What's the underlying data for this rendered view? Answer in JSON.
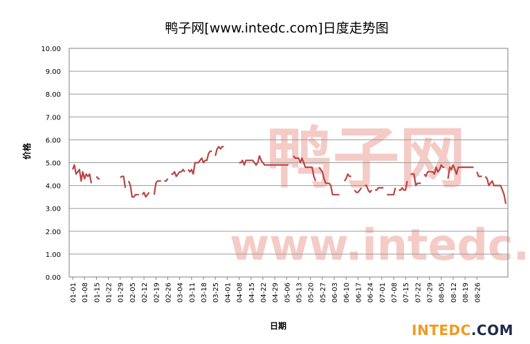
{
  "chart_data": {
    "type": "line",
    "title": "鸭子网[www.intedc.com]日度走势图",
    "xlabel": "日期",
    "ylabel": "价格",
    "ylim": [
      0,
      10
    ],
    "yticks": [
      "0.00",
      "1.00",
      "2.00",
      "3.00",
      "4.00",
      "5.00",
      "6.00",
      "7.00",
      "8.00",
      "9.00",
      "10.00"
    ],
    "xticks": [
      "01-01",
      "01-08",
      "01-15",
      "01-22",
      "01-29",
      "02-05",
      "02-12",
      "02-19",
      "02-26",
      "03-04",
      "03-11",
      "03-18",
      "03-25",
      "04-01",
      "04-08",
      "04-15",
      "04-22",
      "04-29",
      "05-06",
      "05-13",
      "05-20",
      "05-27",
      "06-03",
      "06-10",
      "06-17",
      "06-24",
      "07-01",
      "07-08",
      "07-15",
      "07-22",
      "07-29",
      "08-05",
      "08-12",
      "08-19",
      "08-26"
    ],
    "grid": true,
    "legend": "none",
    "series": [
      {
        "color": "#b94545",
        "segments": [
          [
            [
              0,
              4.7
            ],
            [
              1,
              4.9
            ],
            [
              2,
              4.5
            ],
            [
              3,
              4.6
            ],
            [
              4,
              4.7
            ],
            [
              5,
              4.2
            ],
            [
              6,
              4.6
            ],
            [
              7,
              4.3
            ],
            [
              8,
              4.5
            ],
            [
              9,
              4.4
            ],
            [
              10,
              4.5
            ],
            [
              11,
              4.1
            ]
          ],
          [
            [
              14,
              4.4
            ],
            [
              15,
              4.3
            ],
            [
              16,
              4.3
            ]
          ],
          [
            [
              28,
              4.35
            ],
            [
              29,
              4.4
            ],
            [
              30,
              4.4
            ],
            [
              31,
              3.9
            ]
          ],
          [
            [
              33,
              4.2
            ],
            [
              34,
              4.0
            ],
            [
              35,
              3.5
            ],
            [
              36,
              3.5
            ],
            [
              37,
              3.6
            ],
            [
              38,
              3.6
            ],
            [
              39,
              3.6
            ]
          ],
          [
            [
              41,
              3.6
            ],
            [
              42,
              3.7
            ],
            [
              43,
              3.5
            ],
            [
              44,
              3.6
            ],
            [
              45,
              3.7
            ]
          ],
          [
            [
              48,
              3.6
            ],
            [
              49,
              4.1
            ],
            [
              50,
              4.2
            ],
            [
              51,
              4.2
            ],
            [
              52,
              4.2
            ]
          ],
          [
            [
              54,
              4.2
            ],
            [
              55,
              4.2
            ],
            [
              56,
              4.3
            ]
          ],
          [
            [
              58,
              4.5
            ],
            [
              59,
              4.5
            ],
            [
              60,
              4.6
            ],
            [
              61,
              4.4
            ],
            [
              62,
              4.5
            ],
            [
              63,
              4.6
            ],
            [
              64,
              4.6
            ],
            [
              65,
              4.7
            ],
            [
              66,
              4.6
            ]
          ],
          [
            [
              68,
              4.7
            ],
            [
              69,
              4.6
            ],
            [
              70,
              4.7
            ],
            [
              71,
              4.5
            ],
            [
              72,
              5.0
            ],
            [
              73,
              5.0
            ],
            [
              74,
              5.0
            ],
            [
              75,
              5.1
            ],
            [
              76,
              5.2
            ],
            [
              77,
              5.0
            ],
            [
              78,
              5.1
            ],
            [
              79,
              5.1
            ],
            [
              80,
              5.4
            ],
            [
              81,
              5.5
            ],
            [
              82,
              5.5
            ]
          ],
          [
            [
              84,
              5.3
            ],
            [
              85,
              5.6
            ],
            [
              86,
              5.7
            ],
            [
              87,
              5.6
            ],
            [
              88,
              5.7
            ],
            [
              89,
              5.7
            ]
          ],
          [
            [
              98,
              5.0
            ],
            [
              99,
              5.0
            ],
            [
              100,
              5.1
            ],
            [
              101,
              4.9
            ],
            [
              102,
              5.1
            ],
            [
              103,
              5.1
            ],
            [
              104,
              5.1
            ],
            [
              105,
              5.1
            ],
            [
              106,
              5.1
            ],
            [
              107,
              5.0
            ],
            [
              108,
              4.9
            ],
            [
              109,
              5.0
            ],
            [
              110,
              5.3
            ],
            [
              111,
              5.1
            ],
            [
              112,
              5.0
            ],
            [
              113,
              4.9
            ],
            [
              114,
              4.9
            ],
            [
              115,
              4.9
            ],
            [
              116,
              4.9
            ],
            [
              117,
              4.9
            ],
            [
              118,
              4.9
            ],
            [
              119,
              4.9
            ],
            [
              120,
              4.9
            ],
            [
              121,
              4.9
            ],
            [
              122,
              4.9
            ],
            [
              123,
              4.9
            ],
            [
              124,
              4.9
            ],
            [
              125,
              4.9
            ],
            [
              126,
              4.9
            ],
            [
              127,
              4.9
            ]
          ],
          [
            [
              130,
              5.3
            ],
            [
              131,
              5.2
            ],
            [
              132,
              5.2
            ],
            [
              133,
              5.2
            ],
            [
              134,
              5.0
            ],
            [
              135,
              5.2
            ],
            [
              136,
              5.0
            ],
            [
              137,
              4.8
            ],
            [
              138,
              4.8
            ],
            [
              139,
              4.8
            ],
            [
              140,
              4.8
            ],
            [
              141,
              4.8
            ],
            [
              142,
              4.4
            ],
            [
              143,
              4.2
            ]
          ],
          [
            [
              145,
              4.8
            ],
            [
              146,
              4.7
            ],
            [
              147,
              4.6
            ],
            [
              148,
              4.3
            ],
            [
              149,
              4.1
            ],
            [
              150,
              4.1
            ],
            [
              151,
              4.1
            ],
            [
              152,
              4.0
            ],
            [
              153,
              3.6
            ],
            [
              154,
              3.6
            ],
            [
              155,
              3.6
            ],
            [
              156,
              3.6
            ],
            [
              157,
              3.6
            ]
          ],
          [
            [
              160,
              4.2
            ],
            [
              161,
              4.3
            ],
            [
              162,
              4.5
            ],
            [
              163,
              4.4
            ],
            [
              164,
              4.4
            ]
          ],
          [
            [
              166,
              3.8
            ],
            [
              167,
              3.7
            ],
            [
              168,
              3.7
            ],
            [
              169,
              3.8
            ],
            [
              170,
              3.9
            ]
          ],
          [
            [
              172,
              4.0
            ],
            [
              173,
              4.0
            ],
            [
              174,
              3.8
            ],
            [
              175,
              3.7
            ],
            [
              176,
              3.8
            ]
          ],
          [
            [
              178,
              3.8
            ],
            [
              179,
              3.8
            ],
            [
              180,
              3.9
            ],
            [
              181,
              3.9
            ],
            [
              182,
              3.9
            ],
            [
              183,
              3.9
            ]
          ],
          [
            [
              185,
              3.6
            ],
            [
              186,
              3.6
            ],
            [
              187,
              3.6
            ],
            [
              188,
              3.6
            ],
            [
              189,
              3.6
            ],
            [
              190,
              3.9
            ]
          ],
          [
            [
              192,
              3.8
            ],
            [
              193,
              3.8
            ],
            [
              194,
              3.9
            ],
            [
              195,
              3.8
            ],
            [
              196,
              3.8
            ],
            [
              197,
              4.2
            ]
          ],
          [
            [
              199,
              4.5
            ],
            [
              200,
              4.5
            ],
            [
              201,
              4.5
            ],
            [
              202,
              4.0
            ],
            [
              203,
              4.1
            ],
            [
              204,
              4.1
            ],
            [
              205,
              4.1
            ]
          ],
          [
            [
              207,
              4.5
            ],
            [
              208,
              4.4
            ],
            [
              209,
              4.6
            ],
            [
              210,
              4.6
            ],
            [
              211,
              4.6
            ],
            [
              212,
              4.6
            ],
            [
              213,
              4.5
            ],
            [
              214,
              4.8
            ],
            [
              215,
              4.6
            ],
            [
              216,
              4.7
            ],
            [
              217,
              4.9
            ],
            [
              218,
              4.8
            ],
            [
              219,
              4.8
            ]
          ],
          [
            [
              221,
              4.3
            ],
            [
              222,
              4.8
            ],
            [
              223,
              4.7
            ],
            [
              224,
              4.9
            ],
            [
              225,
              4.7
            ],
            [
              226,
              4.5
            ],
            [
              227,
              4.8
            ],
            [
              228,
              4.8
            ],
            [
              229,
              4.8
            ],
            [
              230,
              4.8
            ],
            [
              231,
              4.8
            ],
            [
              232,
              4.8
            ],
            [
              233,
              4.8
            ],
            [
              234,
              4.8
            ],
            [
              235,
              4.8
            ],
            [
              236,
              4.8
            ]
          ],
          [
            [
              238,
              4.6
            ],
            [
              239,
              4.4
            ],
            [
              240,
              4.4
            ],
            [
              241,
              4.4
            ]
          ],
          [
            [
              243,
              4.4
            ],
            [
              244,
              4.3
            ],
            [
              245,
              4.0
            ],
            [
              246,
              4.1
            ],
            [
              247,
              4.2
            ],
            [
              248,
              4.0
            ],
            [
              249,
              4.0
            ],
            [
              250,
              4.0
            ],
            [
              251,
              4.0
            ],
            [
              252,
              4.0
            ],
            [
              253,
              3.8
            ],
            [
              254,
              3.6
            ],
            [
              255,
              3.2
            ]
          ]
        ]
      }
    ]
  },
  "watermark": {
    "logo_text": "鸭子网",
    "url_text": "www.intedc.com"
  },
  "brand": {
    "part1": "INTEDC",
    "part2": ".COM"
  }
}
